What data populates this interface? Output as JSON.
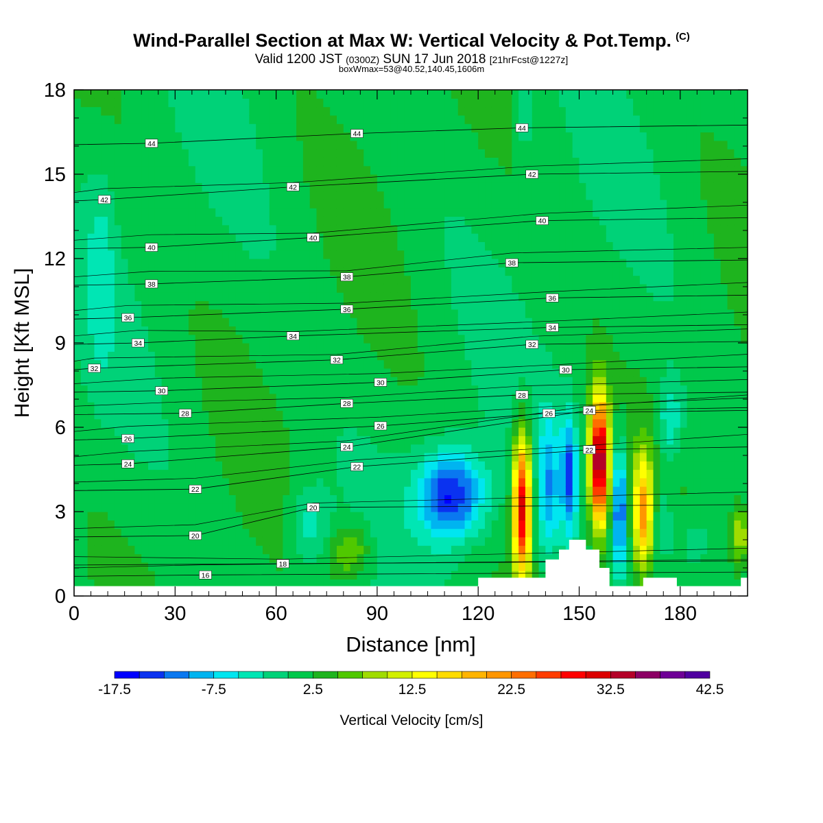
{
  "header": {
    "title": "Wind-Parallel Section at Max W: Vertical Velocity & Pot.Temp.",
    "copyright": "(C)",
    "valid_prefix": "Valid 1200 JST",
    "valid_utc": "(0300Z)",
    "valid_date": "SUN 17 Jun 2018",
    "forecast": "[21hrFcst@1227z]",
    "boxmax": "boxWmax=53@40.52,140.45,1606m"
  },
  "chart_data": {
    "type": "heatmap",
    "xlabel": "Distance [nm]",
    "ylabel": "Height [Kft MSL]",
    "xlim": [
      0,
      200
    ],
    "ylim": [
      0,
      18
    ],
    "x_ticks": [
      0,
      30,
      60,
      90,
      120,
      150,
      180
    ],
    "y_ticks": [
      0,
      3,
      6,
      9,
      12,
      15,
      18
    ],
    "colorbar": {
      "label": "Vertical Velocity [cm/s]",
      "tick_labels": [
        "-17.5",
        "-7.5",
        "2.5",
        "12.5",
        "22.5",
        "32.5",
        "42.5"
      ],
      "range": [
        -17.5,
        42.5
      ],
      "step": 2.5,
      "colors": [
        "#0000ff",
        "#0a32f0",
        "#0a78f0",
        "#00b4f0",
        "#00e6f0",
        "#00e6b4",
        "#00d278",
        "#00c84b",
        "#1eb41e",
        "#50c800",
        "#a0dc00",
        "#d2f000",
        "#ffff00",
        "#ffdc00",
        "#ffb400",
        "#ff9600",
        "#ff6e00",
        "#ff3c00",
        "#ff0000",
        "#dc0000",
        "#b40028",
        "#8c0064",
        "#6e0096",
        "#5000a0"
      ]
    },
    "background_value_range": [
      0,
      2.5
    ],
    "theta_contour_labels": [
      {
        "label": "16",
        "x": 39,
        "y": 0.75
      },
      {
        "label": "18",
        "x": 62,
        "y": 1.15
      },
      {
        "label": "20",
        "x": 36,
        "y": 2.15
      },
      {
        "label": "20",
        "x": 71,
        "y": 3.15
      },
      {
        "label": "22",
        "x": 36,
        "y": 3.8
      },
      {
        "label": "22",
        "x": 84,
        "y": 4.6
      },
      {
        "label": "22",
        "x": 153,
        "y": 5.2
      },
      {
        "label": "24",
        "x": 16,
        "y": 4.7
      },
      {
        "label": "24",
        "x": 81,
        "y": 5.3
      },
      {
        "label": "24",
        "x": 153,
        "y": 6.6
      },
      {
        "label": "26",
        "x": 16,
        "y": 5.6
      },
      {
        "label": "26",
        "x": 91,
        "y": 6.05
      },
      {
        "label": "26",
        "x": 141,
        "y": 6.5
      },
      {
        "label": "28",
        "x": 33,
        "y": 6.5
      },
      {
        "label": "28",
        "x": 81,
        "y": 6.85
      },
      {
        "label": "28",
        "x": 133,
        "y": 7.15
      },
      {
        "label": "30",
        "x": 26,
        "y": 7.3
      },
      {
        "label": "30",
        "x": 91,
        "y": 7.6
      },
      {
        "label": "30",
        "x": 146,
        "y": 8.05
      },
      {
        "label": "32",
        "x": 6,
        "y": 8.1
      },
      {
        "label": "32",
        "x": 78,
        "y": 8.4
      },
      {
        "label": "32",
        "x": 136,
        "y": 8.95
      },
      {
        "label": "34",
        "x": 19,
        "y": 9.0
      },
      {
        "label": "34",
        "x": 65,
        "y": 9.25
      },
      {
        "label": "34",
        "x": 142,
        "y": 9.55
      },
      {
        "label": "36",
        "x": 16,
        "y": 9.9
      },
      {
        "label": "36",
        "x": 81,
        "y": 10.2
      },
      {
        "label": "36",
        "x": 142,
        "y": 10.6
      },
      {
        "label": "38",
        "x": 23,
        "y": 11.1
      },
      {
        "label": "38",
        "x": 81,
        "y": 11.35
      },
      {
        "label": "38",
        "x": 130,
        "y": 11.85
      },
      {
        "label": "40",
        "x": 23,
        "y": 12.4
      },
      {
        "label": "40",
        "x": 71,
        "y": 12.75
      },
      {
        "label": "40",
        "x": 139,
        "y": 13.35
      },
      {
        "label": "42",
        "x": 9,
        "y": 14.1
      },
      {
        "label": "42",
        "x": 65,
        "y": 14.55
      },
      {
        "label": "42",
        "x": 136,
        "y": 15.0
      },
      {
        "label": "44",
        "x": 23,
        "y": 16.1
      },
      {
        "label": "44",
        "x": 84,
        "y": 16.45
      },
      {
        "label": "44",
        "x": 133,
        "y": 16.65
      }
    ],
    "velocity_features": [
      {
        "x": 112,
        "y": 3.6,
        "sx": 7,
        "sy": 1.1,
        "value": -17
      },
      {
        "x": 133,
        "y": 3.2,
        "sx": 1.8,
        "sy": 1.8,
        "value": 30
      },
      {
        "x": 141,
        "y": 3.9,
        "sx": 2.2,
        "sy": 1.8,
        "value": -10
      },
      {
        "x": 147,
        "y": 4.3,
        "sx": 1.7,
        "sy": 1.5,
        "value": -14
      },
      {
        "x": 156,
        "y": 4.8,
        "sx": 1.9,
        "sy": 1.6,
        "value": 36
      },
      {
        "x": 162,
        "y": 3.1,
        "sx": 1.5,
        "sy": 1.6,
        "value": -16
      },
      {
        "x": 169,
        "y": 3.0,
        "sx": 2.0,
        "sy": 1.4,
        "value": 18
      },
      {
        "x": 175,
        "y": 2.6,
        "sx": 2.5,
        "sy": 1.2,
        "value": -5
      },
      {
        "x": 184,
        "y": 1.8,
        "sx": 4.0,
        "sy": 0.9,
        "value": -4
      },
      {
        "x": 70,
        "y": 2.5,
        "sx": 4.0,
        "sy": 1.0,
        "value": -6
      },
      {
        "x": 82,
        "y": 1.6,
        "sx": 4.0,
        "sy": 0.6,
        "value": 7
      },
      {
        "x": 8,
        "y": 11.5,
        "sx": 3.0,
        "sy": 2.5,
        "value": -4
      },
      {
        "x": 134,
        "y": 17.0,
        "sx": 2.0,
        "sy": 1.0,
        "value": -4
      },
      {
        "x": 177,
        "y": 6.3,
        "sx": 2.5,
        "sy": 1.0,
        "value": -7
      },
      {
        "x": 198,
        "y": 2.2,
        "sx": 2.0,
        "sy": 0.8,
        "value": 9
      }
    ],
    "terrain": [
      [
        0,
        0.35
      ],
      [
        120,
        0.35
      ],
      [
        120,
        0.65
      ],
      [
        140,
        0.65
      ],
      [
        140,
        1.3
      ],
      [
        144,
        1.3
      ],
      [
        144,
        1.65
      ],
      [
        147,
        1.65
      ],
      [
        147,
        2.0
      ],
      [
        152,
        2.0
      ],
      [
        152,
        1.65
      ],
      [
        156,
        1.65
      ],
      [
        156,
        1.0
      ],
      [
        159,
        1.0
      ],
      [
        159,
        0.35
      ],
      [
        169,
        0.35
      ],
      [
        169,
        0.65
      ],
      [
        179,
        0.65
      ],
      [
        179,
        0.35
      ],
      [
        198,
        0.35
      ],
      [
        198,
        0.65
      ],
      [
        201,
        0.65
      ]
    ]
  }
}
